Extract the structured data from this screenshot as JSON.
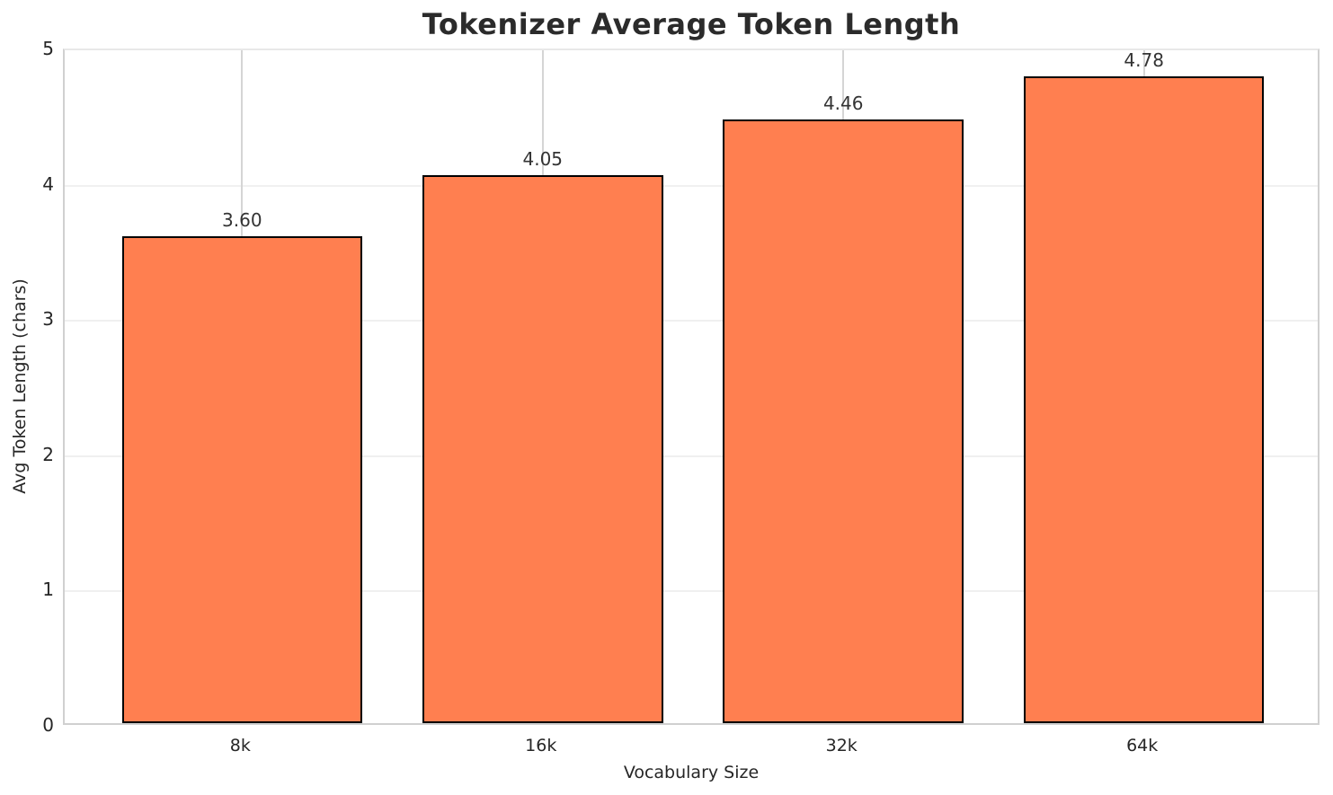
{
  "chart_data": {
    "type": "bar",
    "title": "Tokenizer Average Token Length",
    "xlabel": "Vocabulary Size",
    "ylabel": "Avg Token Length (chars)",
    "categories": [
      "8k",
      "16k",
      "32k",
      "64k"
    ],
    "values": [
      3.6,
      4.05,
      4.46,
      4.78
    ],
    "value_labels": [
      "3.60",
      "4.05",
      "4.46",
      "4.78"
    ],
    "ylim": [
      0,
      5
    ],
    "yticks": [
      "0",
      "1",
      "2",
      "3",
      "4",
      "5"
    ],
    "grid": "on",
    "legend": "none",
    "bar_color": "#FF7F50",
    "bar_edge_color": "#000000",
    "gridline_color_horizontal": "#f0f0f0",
    "gridline_color_vertical": "#d5d5d5",
    "text_color": "#262626"
  }
}
